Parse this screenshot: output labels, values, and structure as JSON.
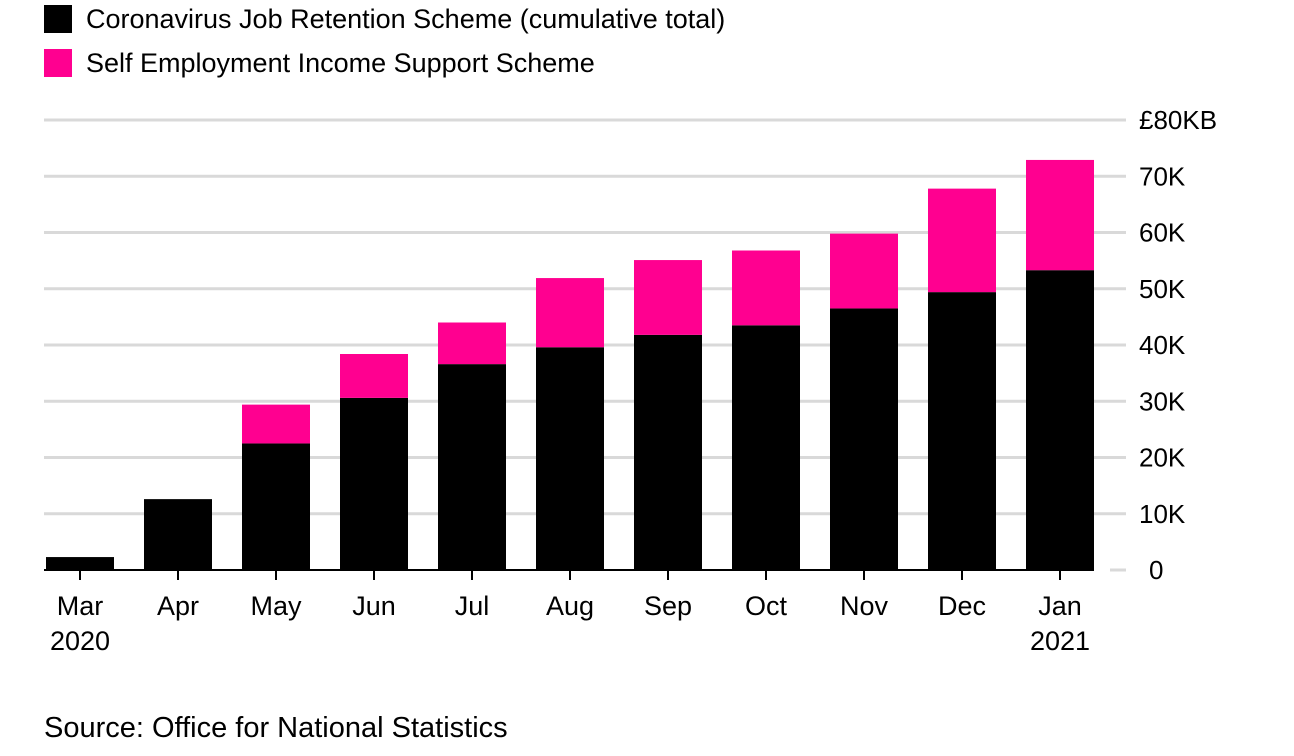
{
  "chart_data": {
    "type": "bar",
    "stacked": true,
    "title": "",
    "xlabel": "",
    "ylabel": "",
    "ylim": [
      0,
      80
    ],
    "y_ticks": [
      {
        "value": 0,
        "label": "0"
      },
      {
        "value": 10,
        "label": "10K"
      },
      {
        "value": 20,
        "label": "20K"
      },
      {
        "value": 30,
        "label": "30K"
      },
      {
        "value": 40,
        "label": "40K"
      },
      {
        "value": 50,
        "label": "50K"
      },
      {
        "value": 60,
        "label": "60K"
      },
      {
        "value": 70,
        "label": "70K"
      },
      {
        "value": 80,
        "label": "£80KB"
      }
    ],
    "categories": [
      "Mar",
      "Apr",
      "May",
      "Jun",
      "Jul",
      "Aug",
      "Sep",
      "Oct",
      "Nov",
      "Dec",
      "Jan"
    ],
    "category_years": [
      "2020",
      "",
      "",
      "",
      "",
      "",
      "",
      "",
      "",
      "",
      "2021"
    ],
    "series": [
      {
        "name": "Coronavirus Job Retention Scheme (cumulative total)",
        "color": "#000000",
        "values": [
          2.3,
          12.6,
          22.5,
          30.6,
          36.6,
          39.6,
          41.8,
          43.5,
          46.5,
          49.4,
          53.3
        ]
      },
      {
        "name": "Self Employment Income Support Scheme",
        "color": "#ff0090",
        "values": [
          0,
          0,
          6.9,
          7.8,
          7.4,
          12.3,
          13.3,
          13.3,
          13.3,
          18.4,
          19.6
        ]
      }
    ],
    "legend_position": "top-left",
    "grid": true,
    "y_axis_side": "right"
  },
  "source": {
    "text": "Source: Office for National Statistics"
  }
}
